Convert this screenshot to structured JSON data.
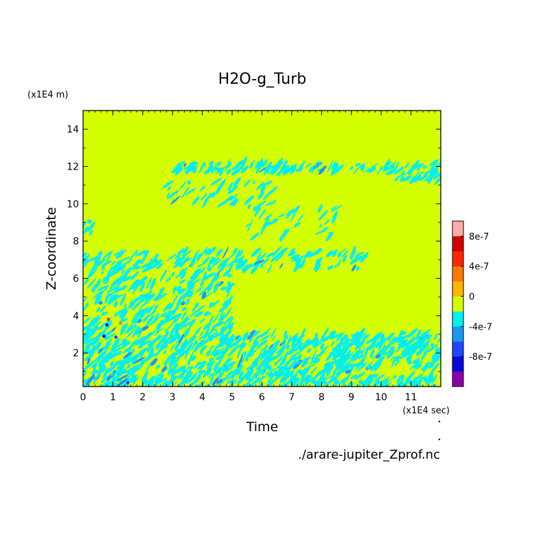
{
  "chart_data": {
    "type": "heatmap",
    "title": "H2O-g_Turb",
    "xlabel": "Time",
    "ylabel": "Z-coordinate",
    "x_unit": "(x1E4 sec)",
    "y_unit": "(x1E4 m)",
    "source_file": "./arare-jupiter_Zprof.nc",
    "xlim": [
      0,
      12
    ],
    "ylim": [
      0.2,
      15
    ],
    "x_ticks": [
      0,
      1,
      2,
      3,
      4,
      5,
      6,
      7,
      8,
      9,
      10,
      11
    ],
    "y_ticks": [
      2,
      4,
      6,
      8,
      10,
      12,
      14
    ],
    "background_level_color": "#d4ff00",
    "colorbar": {
      "levels": [
        {
          "upper": "-8e-7",
          "color": "#8a00a8"
        },
        {
          "upper": "-6e-7",
          "color": "#0a0ad8"
        },
        {
          "upper": "-4e-7",
          "color": "#1e46ff"
        },
        {
          "upper": "-2e-7",
          "color": "#1e96f0"
        },
        {
          "upper": "0",
          "color": "#00f0f0"
        },
        {
          "upper": "2e-7",
          "color": "#d4ff00"
        },
        {
          "upper": "4e-7",
          "color": "#ffb400"
        },
        {
          "upper": "6e-7",
          "color": "#ff7800"
        },
        {
          "upper": "8e-7",
          "color": "#ff2800"
        },
        {
          "upper": "1e-6",
          "color": "#d20000"
        },
        {
          "upper": "max",
          "color": "#ffaaaa"
        }
      ],
      "tick_labels": [
        "8e-7",
        "4e-7",
        "0",
        "-4e-7",
        "-8e-7"
      ],
      "tick_values": [
        8e-07,
        4e-07,
        0,
        -4e-07,
        -8e-07
      ]
    },
    "negative_regions": [
      {
        "t0": 0.0,
        "t1": 12.0,
        "z0": 0.2,
        "z1": 0.8,
        "density": 0.55
      },
      {
        "t0": 0.0,
        "t1": 9.0,
        "z0": 0.8,
        "z1": 2.6,
        "density": 0.5
      },
      {
        "t0": 8.5,
        "t1": 12.0,
        "z0": 1.2,
        "z1": 2.9,
        "density": 0.45
      },
      {
        "t0": 0.0,
        "t1": 5.0,
        "z0": 2.6,
        "z1": 3.8,
        "density": 0.45
      },
      {
        "t0": 5.0,
        "t1": 12.0,
        "z0": 2.6,
        "z1": 3.1,
        "density": 0.35
      },
      {
        "t0": 0.0,
        "t1": 5.0,
        "z0": 3.8,
        "z1": 7.5,
        "density": 0.3
      },
      {
        "t0": 5.0,
        "t1": 9.5,
        "z0": 6.5,
        "z1": 7.5,
        "density": 0.3
      },
      {
        "t0": 3.0,
        "t1": 12.0,
        "z0": 11.7,
        "z1": 12.2,
        "density": 0.55
      },
      {
        "t0": 10.5,
        "t1": 12.0,
        "z0": 11.2,
        "z1": 11.7,
        "density": 0.5
      },
      {
        "t0": 2.8,
        "t1": 6.5,
        "z0": 10.0,
        "z1": 11.2,
        "density": 0.18
      },
      {
        "t0": 5.5,
        "t1": 8.5,
        "z0": 8.2,
        "z1": 10.0,
        "density": 0.12
      },
      {
        "t0": 0.0,
        "t1": 0.3,
        "z0": 8.3,
        "z1": 9.3,
        "density": 0.5
      }
    ],
    "extreme_spots": [
      {
        "t": 0.85,
        "z": 3.8,
        "level": 8
      },
      {
        "t": 1.25,
        "z": 3.6,
        "level": 7
      },
      {
        "t": 0.8,
        "z": 3.5,
        "level": 1
      },
      {
        "t": 0.7,
        "z": 2.9,
        "level": 1
      },
      {
        "t": 1.1,
        "z": 2.85,
        "level": 2
      },
      {
        "t": 1.5,
        "z": 0.4,
        "level": 2
      }
    ]
  }
}
